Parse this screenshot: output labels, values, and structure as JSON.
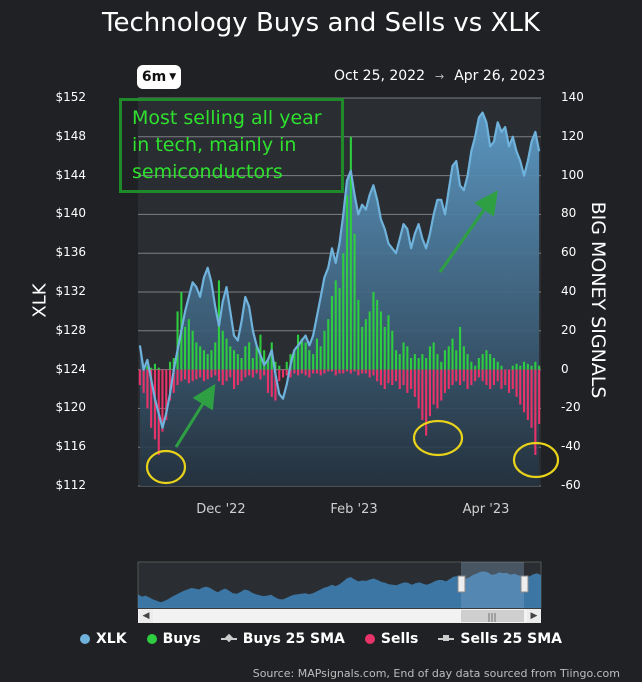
{
  "title": "Technology Buys and Sells vs XLK",
  "range_button": {
    "label": "6m"
  },
  "date_range": {
    "from": "Oct 25, 2022",
    "to": "Apr 26, 2023"
  },
  "annotation": {
    "lines": [
      "Most selling all year",
      "in tech, mainly in",
      "semiconductors"
    ]
  },
  "y_left_label": "XLK",
  "y_right_label": "BIG MONEY SIGNALS",
  "legend": [
    {
      "label": "XLK",
      "color": "#6fb2dc",
      "kind": "dot"
    },
    {
      "label": "Buys",
      "color": "#2ecc40",
      "kind": "dot"
    },
    {
      "label": "Buys 25 SMA",
      "color": "#cccccc",
      "kind": "line"
    },
    {
      "label": "Sells",
      "color": "#e8336a",
      "kind": "dot"
    },
    {
      "label": "Sells 25 SMA",
      "color": "#cccccc",
      "kind": "line-sq"
    }
  ],
  "source": "Source: MAPsignals.com, End of day data sourced from Tiingo.com",
  "colors": {
    "xlk_line": "#6fb2dc",
    "buys": "#2ecc40",
    "sells": "#e8336a",
    "annotation": "#2fe02f",
    "circle": "#e8d21a",
    "arrow": "#2ea043"
  },
  "chart_data": {
    "type": "bar+area",
    "xlk": [
      126.5,
      124,
      125,
      123,
      121,
      119.5,
      118,
      119.5,
      121.5,
      124,
      126,
      128,
      130,
      131.5,
      133,
      132.5,
      131.5,
      133.5,
      134.5,
      133,
      130.5,
      128.5,
      131,
      132.5,
      130,
      127.5,
      127,
      129,
      131.5,
      130.5,
      128,
      126.5,
      125.5,
      124.5,
      125,
      126,
      123.5,
      121.5,
      121,
      122.5,
      124.5,
      126,
      126.5,
      127,
      127.5,
      126.5,
      127.5,
      129.5,
      131.5,
      133.5,
      134.5,
      136.5,
      135,
      137,
      140,
      143.5,
      144.5,
      142,
      140,
      141,
      140.5,
      142,
      143,
      141.5,
      139.5,
      138.5,
      137,
      136.5,
      136,
      137.5,
      139,
      138.5,
      136.5,
      138,
      139,
      137.5,
      136.5,
      138,
      140,
      141.5,
      141.5,
      140,
      142.5,
      145,
      145.5,
      143,
      142.5,
      144,
      146.5,
      148,
      150,
      150.5,
      149.5,
      147,
      147.5,
      149.5,
      148.5,
      149,
      147,
      148,
      146.5,
      145.5,
      144,
      145.5,
      147.5,
      148.5,
      146.5
    ],
    "buys": [
      0,
      0,
      2,
      1,
      3,
      1,
      0,
      0,
      4,
      6,
      30,
      40,
      22,
      26,
      20,
      14,
      12,
      10,
      8,
      10,
      14,
      46,
      20,
      16,
      12,
      10,
      8,
      6,
      12,
      14,
      6,
      12,
      18,
      10,
      6,
      14,
      4,
      2,
      0,
      4,
      8,
      10,
      18,
      16,
      14,
      10,
      8,
      16,
      12,
      20,
      26,
      38,
      46,
      42,
      60,
      90,
      120,
      70,
      36,
      22,
      26,
      30,
      40,
      36,
      30,
      22,
      28,
      20,
      10,
      8,
      14,
      12,
      6,
      8,
      6,
      8,
      6,
      12,
      14,
      8,
      4,
      10,
      12,
      16,
      10,
      22,
      12,
      8,
      4,
      2,
      6,
      8,
      10,
      8,
      6,
      4,
      2,
      0,
      0,
      2,
      3,
      2,
      4,
      3,
      2,
      4,
      2
    ],
    "sells": [
      -8,
      -12,
      -20,
      -30,
      -36,
      -44,
      -32,
      -26,
      -16,
      -12,
      -8,
      -6,
      -5,
      -7,
      -6,
      -5,
      -4,
      -6,
      -5,
      -4,
      -3,
      -6,
      -8,
      -6,
      -4,
      -10,
      -8,
      -6,
      -4,
      -3,
      -4,
      -2,
      -5,
      -3,
      -12,
      -14,
      -16,
      -6,
      -4,
      -3,
      -4,
      -2,
      -3,
      -2,
      -3,
      -4,
      -2,
      -2,
      -3,
      -2,
      -1,
      -1,
      -3,
      -2,
      -2,
      -1,
      -2,
      -1,
      -3,
      -2,
      -2,
      -4,
      -3,
      -6,
      -8,
      -10,
      -7,
      -8,
      -6,
      -10,
      -8,
      -12,
      -10,
      -14,
      -20,
      -26,
      -34,
      -24,
      -18,
      -20,
      -16,
      -12,
      -10,
      -8,
      -6,
      -8,
      -6,
      -10,
      -8,
      -6,
      -4,
      -6,
      -8,
      -10,
      -8,
      -6,
      -10,
      -8,
      -12,
      -10,
      -14,
      -18,
      -22,
      -26,
      -30,
      -44,
      -28
    ],
    "xlk_axis": {
      "min": 112,
      "max": 152,
      "ticks": [
        "$152",
        "$148",
        "$144",
        "$140",
        "$136",
        "$132",
        "$128",
        "$124",
        "$120",
        "$116",
        "$112"
      ]
    },
    "signal_axis": {
      "min": -60,
      "max": 140,
      "ticks": [
        "140",
        "120",
        "100",
        "80",
        "60",
        "40",
        "20",
        "0",
        "-20",
        "-40",
        "-60"
      ]
    },
    "x_ticks": [
      "Dec '22",
      "Feb '23",
      "Apr '23"
    ]
  }
}
